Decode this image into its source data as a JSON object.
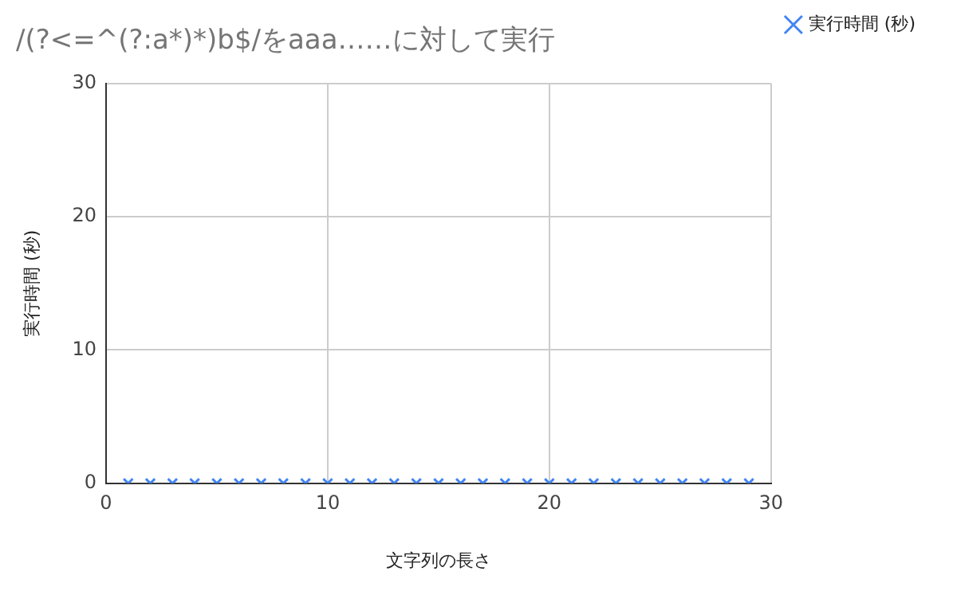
{
  "chart_data": {
    "type": "scatter",
    "title": "/(?<=^(?:a*)*)b$/をaaa……に対して実行",
    "xlabel": "文字列の長さ",
    "ylabel": "実行時間 (秒)",
    "x": [
      1,
      2,
      3,
      4,
      5,
      6,
      7,
      8,
      9,
      10,
      11,
      12,
      13,
      14,
      15,
      16,
      17,
      18,
      19,
      20,
      21,
      22,
      23,
      24,
      25,
      26,
      27,
      28,
      29
    ],
    "series": [
      {
        "name": "実行時間 (秒)",
        "color": "#4285f4",
        "values": [
          0,
          0,
          0,
          0,
          0,
          0,
          0,
          0,
          0,
          0,
          0,
          0,
          0,
          0,
          0,
          0,
          0,
          0,
          0,
          0,
          0,
          0,
          0,
          0,
          0,
          0,
          0,
          0,
          0
        ]
      }
    ],
    "xlim": [
      0,
      30
    ],
    "xticks": [
      0,
      10,
      20,
      30
    ],
    "ylim": [
      0,
      30
    ],
    "yticks": [
      0,
      10,
      20,
      30
    ],
    "grid": true,
    "legend": "top right",
    "marker": "cross"
  }
}
